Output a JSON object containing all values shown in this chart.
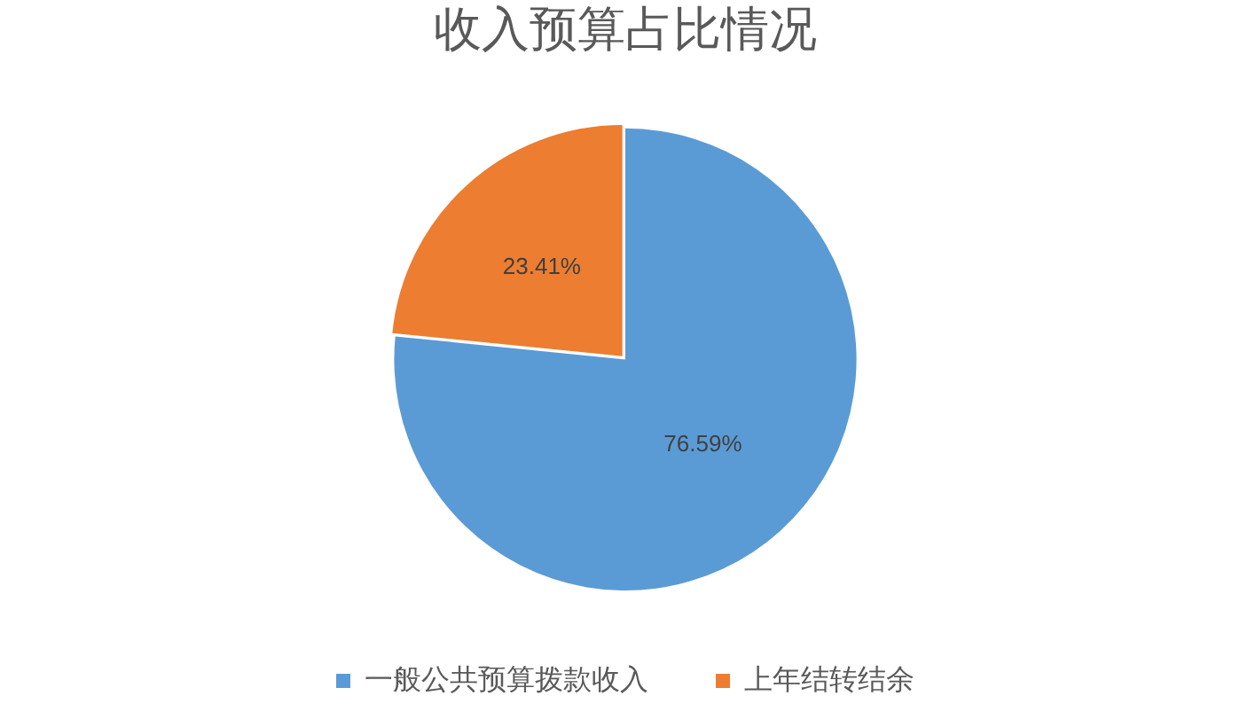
{
  "chart_data": {
    "type": "pie",
    "title": "收入预算占比情况",
    "categories": [
      "一般公共预算拨款收入",
      "上年结转结余"
    ],
    "values": [
      76.59,
      23.41
    ],
    "colors": [
      "#5b9bd5",
      "#ed7d31"
    ],
    "value_labels": [
      "76.59%",
      "23.41%"
    ],
    "legend": "bottom"
  }
}
